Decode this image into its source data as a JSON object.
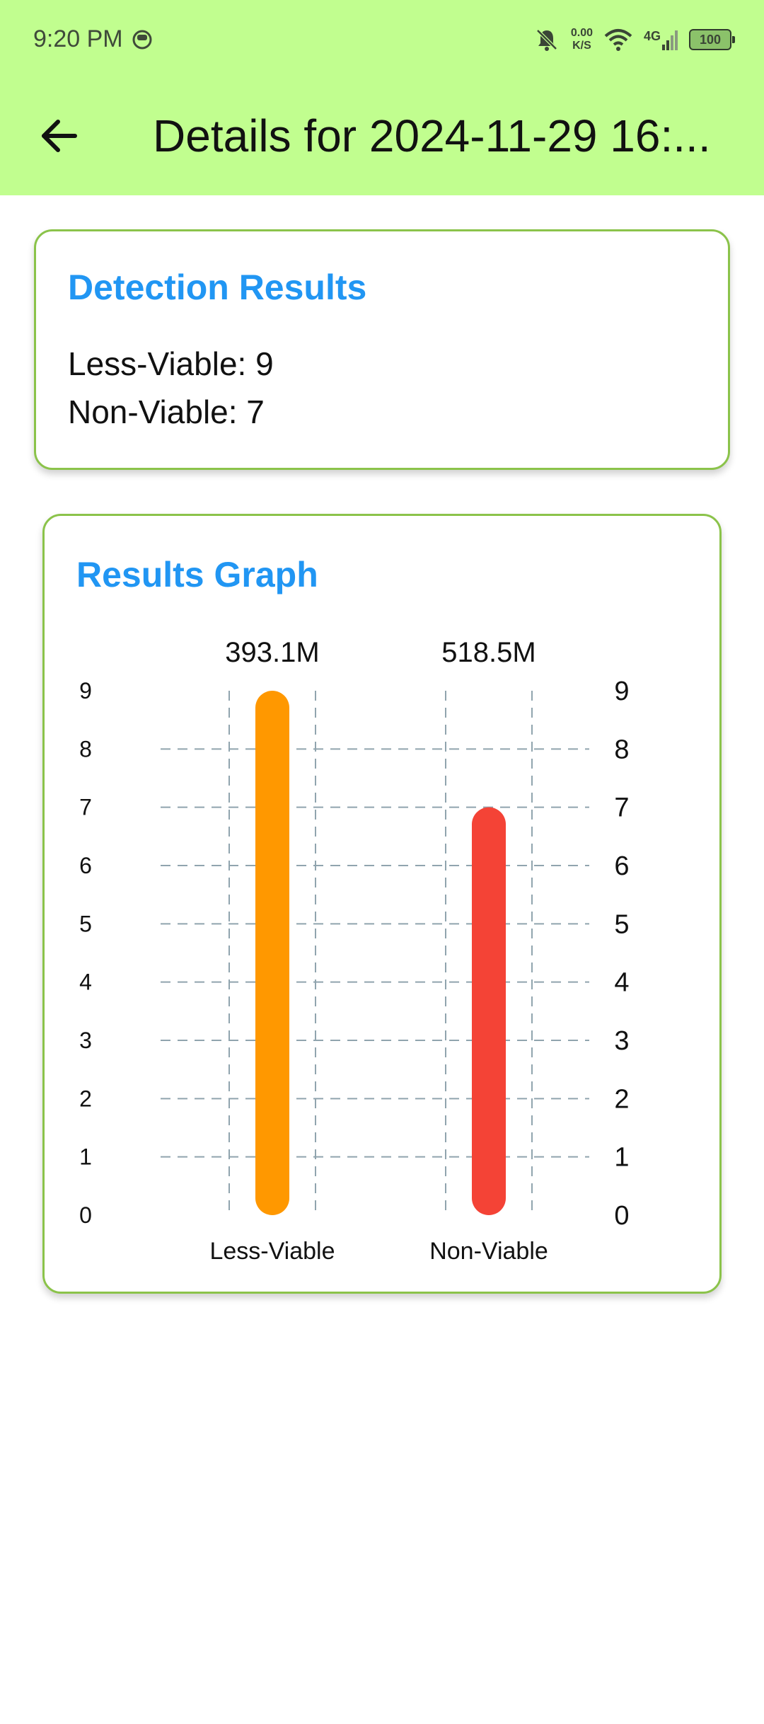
{
  "status_bar": {
    "time": "9:20 PM",
    "net_speed_value": "0.00",
    "net_speed_unit": "K/S",
    "network_type": "4G",
    "battery": "100"
  },
  "header": {
    "title": "Details for 2024-11-29 16:..."
  },
  "detection": {
    "title": "Detection Results",
    "lines": [
      "Less-Viable: 9",
      "Non-Viable: 7"
    ]
  },
  "graph": {
    "title": "Results Graph"
  },
  "colors": {
    "appbar": "#c1fe8f",
    "accent": "#2196f3",
    "card_border": "#8bc34a",
    "bar_less_viable": "#ff9800",
    "bar_non_viable": "#f44336"
  },
  "chart_data": {
    "type": "bar",
    "categories": [
      "Less-Viable",
      "Non-Viable"
    ],
    "values": [
      9,
      7
    ],
    "top_labels": [
      "393.1M",
      "518.5M"
    ],
    "bar_colors": [
      "#ff9800",
      "#f44336"
    ],
    "ylim": [
      0,
      9
    ],
    "yticks": [
      0,
      1,
      2,
      3,
      4,
      5,
      6,
      7,
      8,
      9
    ],
    "grid": true
  }
}
